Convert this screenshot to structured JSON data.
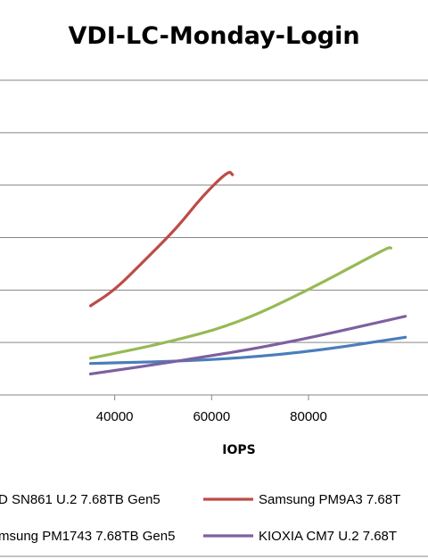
{
  "chart_data": {
    "type": "line",
    "title": "VDI-LC-Monday-Login",
    "xlabel": "IOPS",
    "ylabel": "",
    "x_ticks": [
      40000,
      60000,
      80000
    ],
    "x_tick_labels": [
      "40000",
      "60000",
      "80000"
    ],
    "grid": true,
    "legend_position": "bottom",
    "series": [
      {
        "name": "D SN861 U.2 7.68TB Gen5",
        "color": "#4a7ebb",
        "points": [
          [
            35000,
            0.6
          ],
          [
            60000,
            0.66
          ],
          [
            80000,
            0.82
          ],
          [
            100000,
            1.1
          ]
        ]
      },
      {
        "name": "Samsung PM9A3 7.68T",
        "color": "#be4b48",
        "points": [
          [
            35000,
            1.7
          ],
          [
            40000,
            2.0
          ],
          [
            46000,
            2.55
          ],
          [
            53000,
            3.2
          ],
          [
            58000,
            3.78
          ],
          [
            63500,
            4.28
          ],
          [
            64300,
            4.2
          ]
        ]
      },
      {
        "name": "msung PM1743 7.68TB Gen5",
        "color": "#98b954",
        "points": [
          [
            35000,
            0.7
          ],
          [
            50000,
            0.98
          ],
          [
            65000,
            1.35
          ],
          [
            80000,
            2.0
          ],
          [
            96500,
            2.82
          ],
          [
            97000,
            2.8
          ]
        ]
      },
      {
        "name": "KIOXIA CM7 U.2 7.68T",
        "color": "#7d60a0",
        "points": [
          [
            35000,
            0.4
          ],
          [
            55000,
            0.67
          ],
          [
            75000,
            0.98
          ],
          [
            100000,
            1.5
          ]
        ]
      }
    ]
  }
}
